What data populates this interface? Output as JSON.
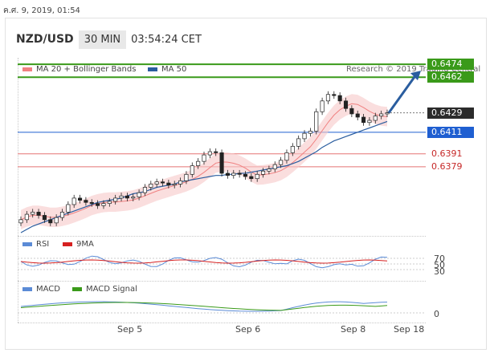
{
  "timestamp": "ค.ศ. 9, 2019, 01:54",
  "header": {
    "pair": "NZD/USD",
    "timeframe": "30 MIN",
    "time": "03:54:24 CET"
  },
  "legend_main": [
    {
      "label": "MA 20 + Bollinger Bands",
      "color": "#f08080"
    },
    {
      "label": "MA 50",
      "color": "#2a5d9f"
    }
  ],
  "credit": "Research © 2019 Trading Central",
  "levels": [
    {
      "value": "0.6474",
      "price": 0.6474,
      "style": "green"
    },
    {
      "value": "0.6462",
      "price": 0.6462,
      "style": "green"
    },
    {
      "value": "0.6429",
      "price": 0.6429,
      "style": "black"
    },
    {
      "value": "0.6411",
      "price": 0.6411,
      "style": "blue"
    },
    {
      "value": "0.6391",
      "price": 0.6391,
      "style": "red"
    },
    {
      "value": "0.6379",
      "price": 0.6379,
      "style": "red"
    }
  ],
  "legend_rsi": [
    {
      "label": "RSI",
      "color": "#5b8bd6"
    },
    {
      "label": "9MA",
      "color": "#d62020"
    }
  ],
  "rsi_ticks": [
    "70",
    "50",
    "30"
  ],
  "legend_macd": [
    {
      "label": "MACD",
      "color": "#5b8bd6"
    },
    {
      "label": "MACD Signal",
      "color": "#3a9a1a"
    }
  ],
  "macd_ticks": [
    "0"
  ],
  "x_labels": [
    "Sep 5",
    "Sep 6",
    "Sep 8",
    "Sep 18"
  ],
  "chart_data": {
    "type": "line",
    "title": "NZD/USD",
    "ylim": [
      0.6315,
      0.648
    ],
    "close": [
      0.633,
      0.6335,
      0.6337,
      0.6334,
      0.633,
      0.6327,
      0.6332,
      0.6337,
      0.6344,
      0.635,
      0.6348,
      0.6346,
      0.6345,
      0.6343,
      0.6345,
      0.6347,
      0.635,
      0.6352,
      0.635,
      0.6351,
      0.6355,
      0.636,
      0.6363,
      0.6365,
      0.6364,
      0.6362,
      0.6363,
      0.6366,
      0.6372,
      0.638,
      0.6384,
      0.639,
      0.6393,
      0.6392,
      0.6373,
      0.6371,
      0.6373,
      0.6372,
      0.637,
      0.6368,
      0.6372,
      0.6375,
      0.6377,
      0.6381,
      0.6385,
      0.6392,
      0.6398,
      0.6405,
      0.641,
      0.6412,
      0.643,
      0.644,
      0.6446,
      0.6445,
      0.644,
      0.6433,
      0.6428,
      0.6425,
      0.642,
      0.6422,
      0.6426,
      0.6428,
      0.6429
    ],
    "ma50": [
      0.6318,
      0.6321,
      0.6324,
      0.6326,
      0.6328,
      0.633,
      0.6332,
      0.6334,
      0.6336,
      0.6338,
      0.634,
      0.6342,
      0.6344,
      0.6346,
      0.6347,
      0.6348,
      0.6349,
      0.635,
      0.6352,
      0.6354,
      0.6355,
      0.6356,
      0.6358,
      0.636,
      0.6361,
      0.6362,
      0.6363,
      0.6365,
      0.6366,
      0.6367,
      0.6368,
      0.6369,
      0.637,
      0.6371,
      0.6371,
      0.6372,
      0.6372,
      0.6373,
      0.6373,
      0.6374,
      0.6375,
      0.6376,
      0.6377,
      0.6378,
      0.6379,
      0.638,
      0.6382,
      0.6384,
      0.6387,
      0.639,
      0.6393,
      0.6397,
      0.64,
      0.6403,
      0.6405,
      0.6407,
      0.6409,
      0.6411,
      0.6413,
      0.6415,
      0.6417,
      0.6419,
      0.6421
    ]
  }
}
